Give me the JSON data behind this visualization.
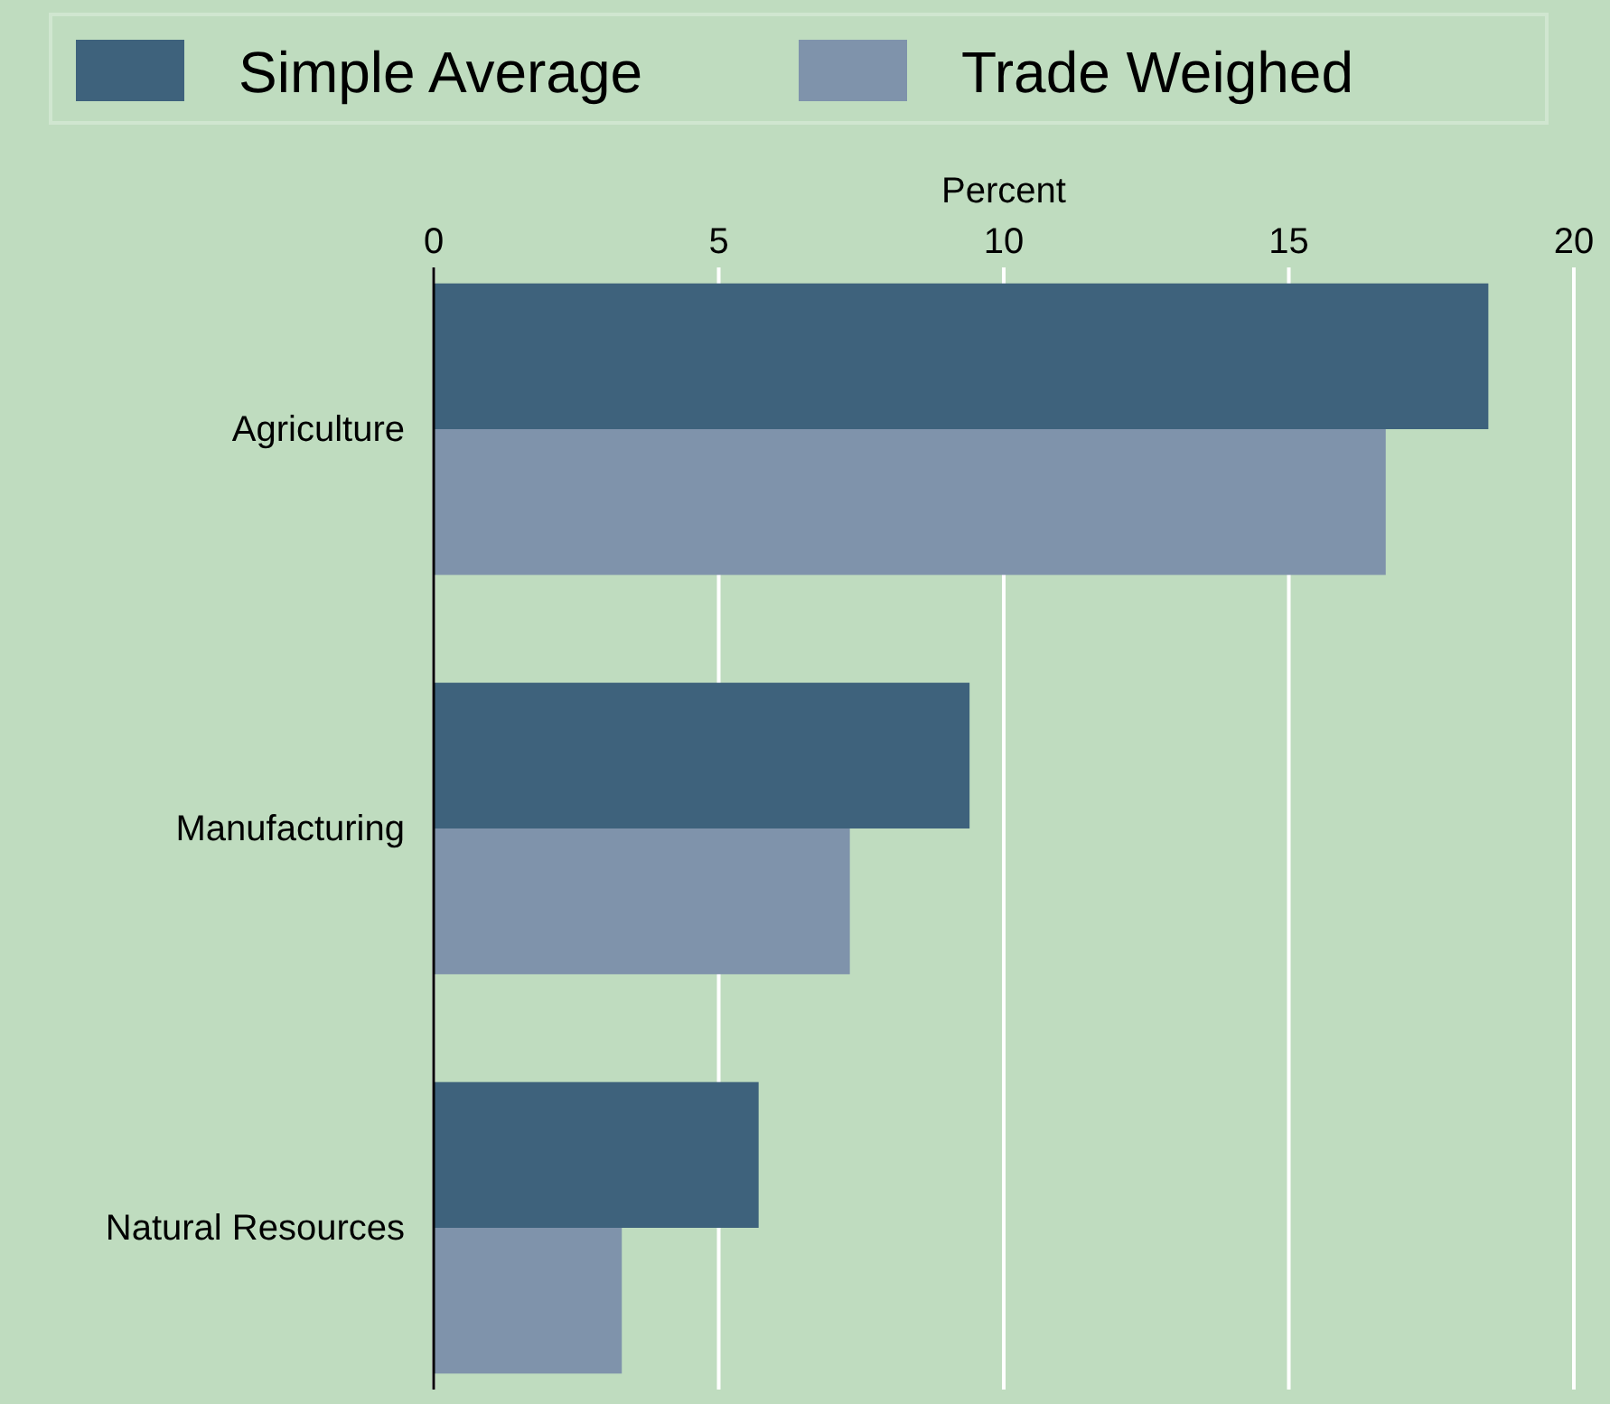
{
  "chart_data": {
    "type": "bar",
    "orientation": "horizontal",
    "xlabel": "Percent",
    "categories": [
      "Agriculture",
      "Manufacturing",
      "Natural Resources"
    ],
    "series": [
      {
        "name": "Simple Average",
        "color": "#3e627c",
        "values": [
          18.5,
          9.4,
          5.7
        ]
      },
      {
        "name": "Trade Weighed",
        "color": "#7f93ab",
        "values": [
          16.7,
          7.3,
          3.3
        ]
      }
    ],
    "xlim": [
      0,
      20
    ],
    "xticks": [
      0,
      5,
      10,
      15,
      20
    ],
    "grid": "x",
    "legend": "top"
  }
}
